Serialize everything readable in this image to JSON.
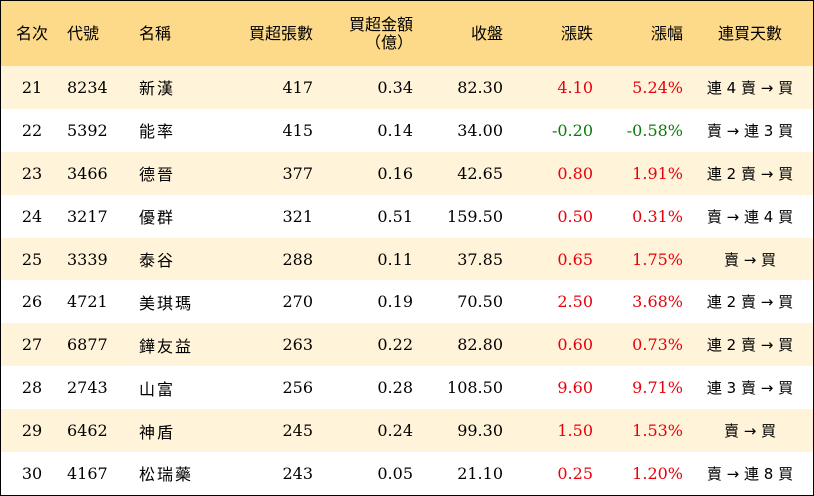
{
  "colors": {
    "header_bg": "#fdd98a",
    "alt_row_bg": "#fff3d9",
    "up": "#e8000b",
    "down": "#0b7a0b"
  },
  "headers": {
    "rank": "名次",
    "code": "代號",
    "name": "名稱",
    "net_buy_lots": "買超張數",
    "net_buy_amount_line1": "買超金額",
    "net_buy_amount_line2": "（億）",
    "close": "收盤",
    "change": "漲跌",
    "change_pct": "漲幅",
    "consecutive_days": "連買天數"
  },
  "rows": [
    {
      "rank": "21",
      "code": "8234",
      "name": "新漢",
      "lots": "417",
      "amount": "0.34",
      "close": "82.30",
      "change": "4.10",
      "pct": "5.24%",
      "dir": "up",
      "trend": "連 4 賣 → 買"
    },
    {
      "rank": "22",
      "code": "5392",
      "name": "能率",
      "lots": "415",
      "amount": "0.14",
      "close": "34.00",
      "change": "-0.20",
      "pct": "-0.58%",
      "dir": "down",
      "trend": "賣 → 連 3 買"
    },
    {
      "rank": "23",
      "code": "3466",
      "name": "德晉",
      "lots": "377",
      "amount": "0.16",
      "close": "42.65",
      "change": "0.80",
      "pct": "1.91%",
      "dir": "up",
      "trend": "連 2 賣 → 買"
    },
    {
      "rank": "24",
      "code": "3217",
      "name": "優群",
      "lots": "321",
      "amount": "0.51",
      "close": "159.50",
      "change": "0.50",
      "pct": "0.31%",
      "dir": "up",
      "trend": "賣 → 連 4 買"
    },
    {
      "rank": "25",
      "code": "3339",
      "name": "泰谷",
      "lots": "288",
      "amount": "0.11",
      "close": "37.85",
      "change": "0.65",
      "pct": "1.75%",
      "dir": "up",
      "trend": "賣 → 買"
    },
    {
      "rank": "26",
      "code": "4721",
      "name": "美琪瑪",
      "lots": "270",
      "amount": "0.19",
      "close": "70.50",
      "change": "2.50",
      "pct": "3.68%",
      "dir": "up",
      "trend": "連 2 賣 → 買"
    },
    {
      "rank": "27",
      "code": "6877",
      "name": "鏵友益",
      "lots": "263",
      "amount": "0.22",
      "close": "82.80",
      "change": "0.60",
      "pct": "0.73%",
      "dir": "up",
      "trend": "連 2 賣 → 買"
    },
    {
      "rank": "28",
      "code": "2743",
      "name": "山富",
      "lots": "256",
      "amount": "0.28",
      "close": "108.50",
      "change": "9.60",
      "pct": "9.71%",
      "dir": "up",
      "trend": "連 3 賣 → 買"
    },
    {
      "rank": "29",
      "code": "6462",
      "name": "神盾",
      "lots": "245",
      "amount": "0.24",
      "close": "99.30",
      "change": "1.50",
      "pct": "1.53%",
      "dir": "up",
      "trend": "賣 → 買"
    },
    {
      "rank": "30",
      "code": "4167",
      "name": "松瑞藥",
      "lots": "243",
      "amount": "0.05",
      "close": "21.10",
      "change": "0.25",
      "pct": "1.20%",
      "dir": "up",
      "trend": "賣 → 連 8 買"
    }
  ]
}
